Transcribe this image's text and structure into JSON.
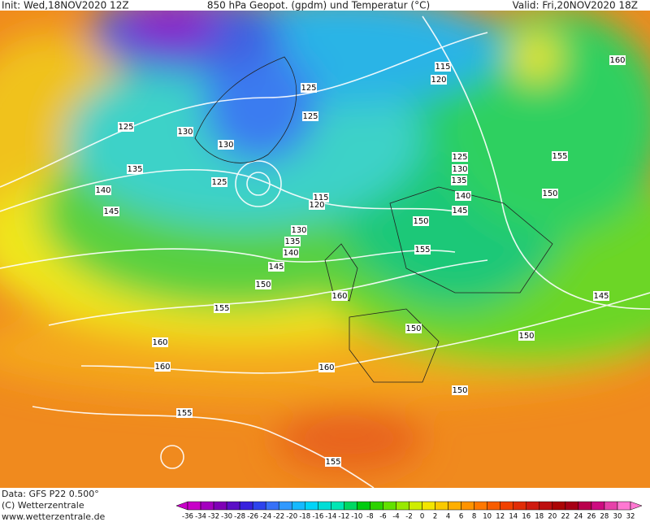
{
  "header": {
    "init": "Init: Wed,18NOV2020 12Z",
    "title": "850 hPa Geopot. (gpdm) und Temperatur (°C)",
    "valid": "Valid: Fri,20NOV2020 18Z"
  },
  "footer": {
    "data": "Data: GFS P22 0.500°",
    "copyright": "(C) Wetterzentrale",
    "url": "www.wetterzentrale.de"
  },
  "colorbar": {
    "labels": [
      "-36",
      "-34",
      "-32",
      "-30",
      "-28",
      "-26",
      "-24",
      "-22",
      "-20",
      "-18",
      "-16",
      "-14",
      "-12",
      "-10",
      "-8",
      "-6",
      "-4",
      "-2",
      "0",
      "2",
      "4",
      "6",
      "8",
      "10",
      "12",
      "14",
      "16",
      "18",
      "20",
      "22",
      "24",
      "26",
      "28",
      "30",
      "32"
    ]
  },
  "contour_labels": [
    "115",
    "120",
    "125",
    "125",
    "125",
    "130",
    "130",
    "135",
    "125",
    "140",
    "115",
    "120",
    "145",
    "130",
    "135",
    "140",
    "145",
    "150",
    "155",
    "160",
    "160",
    "160",
    "160",
    "155",
    "155",
    "125",
    "130",
    "135",
    "140",
    "145",
    "150",
    "155",
    "150",
    "150",
    "145",
    "150",
    "150",
    "155",
    "160"
  ]
}
